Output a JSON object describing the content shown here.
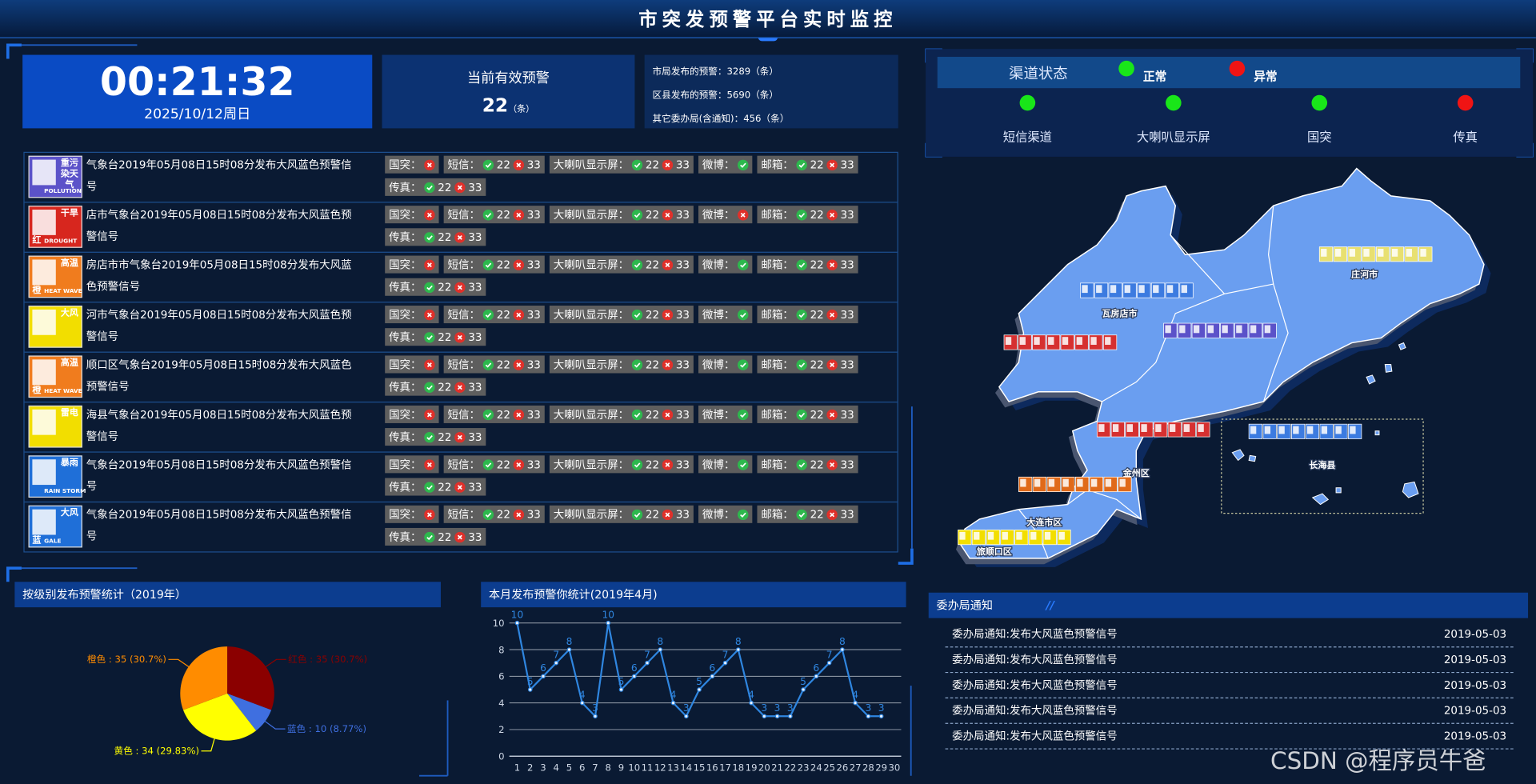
{
  "header": {
    "title": "市突发预警平台实时监控"
  },
  "clock": {
    "time": "00:21:32",
    "date": "2025/10/12周日"
  },
  "active": {
    "label": "当前有效预警",
    "count": 22,
    "unit": "（条）"
  },
  "stats": [
    {
      "label": "市局发布的预警：",
      "value": 3289,
      "unit": "（条）"
    },
    {
      "label": "区县发布的预警：",
      "value": 5690,
      "unit": "（条）"
    },
    {
      "label": "其它委办局(含通知)：",
      "value": 456,
      "unit": "（条）"
    }
  ],
  "alerts": [
    {
      "icon": {
        "label": "重污染天气",
        "sub": "POLLUTION",
        "color": "#5b52c9"
      },
      "text": "气象台2019年05月08日15时08分发布大风蓝色预警信号",
      "channels": [
        {
          "name": "国突：",
          "status": "fail"
        },
        {
          "name": "短信：",
          "ok": 22,
          "fail": 33
        },
        {
          "name": "大喇叭显示屏：",
          "ok": 22,
          "fail": 33
        },
        {
          "name": "微博：",
          "status": "ok"
        },
        {
          "name": "邮箱：",
          "ok": 22,
          "fail": 33
        },
        {
          "name": "传真：",
          "ok": 22,
          "fail": 33
        }
      ]
    },
    {
      "icon": {
        "label": "干旱",
        "sub": "DROUGHT",
        "level": "红",
        "color": "#d7261e"
      },
      "text": "店市气象台2019年05月08日15时08分发布大风蓝色预警信号",
      "channels": [
        {
          "name": "国突：",
          "status": "fail"
        },
        {
          "name": "短信：",
          "ok": 22,
          "fail": 33
        },
        {
          "name": "大喇叭显示屏：",
          "ok": 22,
          "fail": 33
        },
        {
          "name": "微博：",
          "status": "fail"
        },
        {
          "name": "邮箱：",
          "ok": 22,
          "fail": 33
        },
        {
          "name": "传真：",
          "ok": 22,
          "fail": 33
        }
      ]
    },
    {
      "icon": {
        "label": "高温",
        "sub": "HEAT WAVE",
        "level": "橙",
        "color": "#f07c1e"
      },
      "text": "房店市市气象台2019年05月08日15时08分发布大风蓝色预警信号",
      "channels": [
        {
          "name": "国突：",
          "status": "fail"
        },
        {
          "name": "短信：",
          "ok": 22,
          "fail": 33
        },
        {
          "name": "大喇叭显示屏：",
          "ok": 22,
          "fail": 33
        },
        {
          "name": "微博：",
          "status": "ok"
        },
        {
          "name": "邮箱：",
          "ok": 22,
          "fail": 33
        },
        {
          "name": "传真：",
          "ok": 22,
          "fail": 33
        }
      ]
    },
    {
      "icon": {
        "label": "大风",
        "color": "#f2de00"
      },
      "text": "河市气象台2019年05月08日15时08分发布大风蓝色预警信号",
      "channels": [
        {
          "name": "国突：",
          "status": "fail"
        },
        {
          "name": "短信：",
          "ok": 22,
          "fail": 33
        },
        {
          "name": "大喇叭显示屏：",
          "ok": 22,
          "fail": 33
        },
        {
          "name": "微博：",
          "status": "ok"
        },
        {
          "name": "邮箱：",
          "ok": 22,
          "fail": 33
        },
        {
          "name": "传真：",
          "ok": 22,
          "fail": 33
        }
      ]
    },
    {
      "icon": {
        "label": "高温",
        "sub": "HEAT WAVE",
        "level": "橙",
        "color": "#f07c1e"
      },
      "text": "顺口区气象台2019年05月08日15时08分发布大风蓝色预警信号",
      "channels": [
        {
          "name": "国突：",
          "status": "fail"
        },
        {
          "name": "短信：",
          "ok": 22,
          "fail": 33
        },
        {
          "name": "大喇叭显示屏：",
          "ok": 22,
          "fail": 33
        },
        {
          "name": "微博：",
          "status": "ok"
        },
        {
          "name": "邮箱：",
          "ok": 22,
          "fail": 33
        },
        {
          "name": "传真：",
          "ok": 22,
          "fail": 33
        }
      ]
    },
    {
      "icon": {
        "label": "雷电",
        "color": "#f2de00"
      },
      "text": "海县气象台2019年05月08日15时08分发布大风蓝色预警信号",
      "channels": [
        {
          "name": "国突：",
          "status": "fail"
        },
        {
          "name": "短信：",
          "ok": 22,
          "fail": 33
        },
        {
          "name": "大喇叭显示屏：",
          "ok": 22,
          "fail": 33
        },
        {
          "name": "微博：",
          "status": "ok"
        },
        {
          "name": "邮箱：",
          "ok": 22,
          "fail": 33
        },
        {
          "name": "传真：",
          "ok": 22,
          "fail": 33
        }
      ]
    },
    {
      "icon": {
        "label": "暴雨",
        "sub": "RAIN STORM",
        "color": "#1f6fd8"
      },
      "text": "气象台2019年05月08日15时08分发布大风蓝色预警信号",
      "channels": [
        {
          "name": "国突：",
          "status": "fail"
        },
        {
          "name": "短信：",
          "ok": 22,
          "fail": 33
        },
        {
          "name": "大喇叭显示屏：",
          "ok": 22,
          "fail": 33
        },
        {
          "name": "微博：",
          "status": "ok"
        },
        {
          "name": "邮箱：",
          "ok": 22,
          "fail": 33
        },
        {
          "name": "传真：",
          "ok": 22,
          "fail": 33
        }
      ]
    },
    {
      "icon": {
        "label": "大风",
        "sub": "GALE",
        "level": "蓝",
        "color": "#1f6fd8"
      },
      "text": "气象台2019年05月08日15时08分发布大风蓝色预警信号",
      "channels": [
        {
          "name": "国突：",
          "status": "fail"
        },
        {
          "name": "短信：",
          "ok": 22,
          "fail": 33
        },
        {
          "name": "大喇叭显示屏：",
          "ok": 22,
          "fail": 33
        },
        {
          "name": "微博：",
          "status": "ok"
        },
        {
          "name": "邮箱：",
          "ok": 22,
          "fail": 33
        },
        {
          "name": "传真：",
          "ok": 22,
          "fail": 33
        }
      ]
    }
  ],
  "channel_panel": {
    "title": "渠道状态",
    "legend": [
      {
        "label": "正常",
        "color": "#19e619"
      },
      {
        "label": "异常",
        "color": "#f01414"
      }
    ],
    "channels": [
      {
        "name": "短信渠道",
        "status": "正常"
      },
      {
        "name": "大喇叭显示屏",
        "status": "正常"
      },
      {
        "name": "国突",
        "status": "正常"
      },
      {
        "name": "传真",
        "status": "异常"
      }
    ]
  },
  "map": {
    "regions": [
      "庄河市",
      "瓦房店市",
      "金州区",
      "大连市区",
      "旅顺口区",
      "长海县"
    ]
  },
  "chart_data": [
    {
      "type": "pie",
      "title": "按级别发布预警统计（2019年）",
      "categories": [
        "红色",
        "蓝色",
        "黄色",
        "橙色"
      ],
      "values": [
        35,
        10,
        34,
        35
      ],
      "value_labels": [
        "35 (30.7%)",
        "10 (8.77%)",
        "34 (29.83%)",
        "35 (30.7%)"
      ],
      "label_separator": " : ",
      "colors": [
        "#8b0000",
        "#3f6fe0",
        "#ffff00",
        "#ff8c00"
      ]
    },
    {
      "type": "line",
      "title": "本月发布预警你统计(2019年4月)",
      "categories": [
        "1",
        "2",
        "3",
        "4",
        "5",
        "6",
        "7",
        "8",
        "9",
        "10",
        "11",
        "12",
        "13",
        "14",
        "15",
        "16",
        "17",
        "18",
        "19",
        "20",
        "21",
        "22",
        "23",
        "24",
        "25",
        "26",
        "27",
        "28",
        "29",
        "30"
      ],
      "values": [
        10,
        5,
        6,
        7,
        8,
        4,
        3,
        10,
        5,
        6,
        7,
        8,
        4,
        3,
        5,
        6,
        7,
        8,
        4,
        3,
        3,
        3,
        5,
        6,
        7,
        8,
        4,
        3,
        3,
        null
      ],
      "color": "#2f86e0",
      "ylim": [
        0,
        10
      ],
      "yticks": [
        0,
        2,
        4,
        6,
        8,
        10
      ],
      "grid": true
    }
  ],
  "notice": {
    "title": "委办局通知",
    "items": [
      {
        "text": "委办局通知:发布大风蓝色预警信号",
        "date": "2019-05-03"
      },
      {
        "text": "委办局通知:发布大风蓝色预警信号",
        "date": "2019-05-03"
      },
      {
        "text": "委办局通知:发布大风蓝色预警信号",
        "date": "2019-05-03"
      },
      {
        "text": "委办局通知:发布大风蓝色预警信号",
        "date": "2019-05-03"
      },
      {
        "text": "委办局通知:发布大风蓝色预警信号",
        "date": "2019-05-03"
      }
    ]
  },
  "watermark": "CSDN @程序员牛爸"
}
